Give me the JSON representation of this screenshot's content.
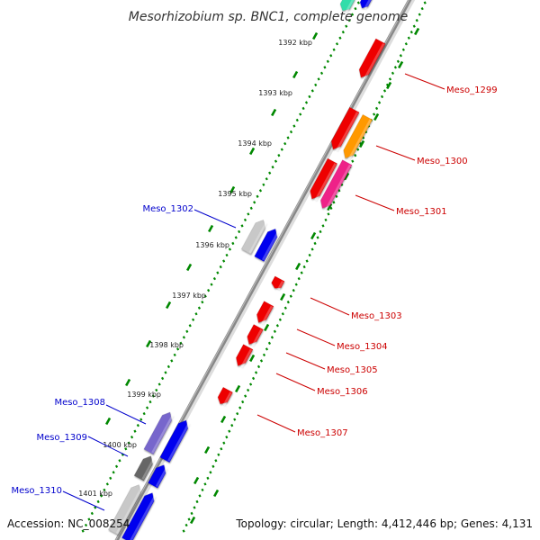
{
  "map": {
    "title": "Mesorhizobium sp. BNC1, complete genome",
    "accession": "Accession: NC_008254",
    "topology": "Topology: circular; Length: 4,412,446 bp; Genes: 4,131"
  },
  "ruler": {
    "ticks": [
      "1392 kbp",
      "1393 kbp",
      "1394 kbp",
      "1395 kbp",
      "1396 kbp",
      "1397 kbp",
      "1398 kbp",
      "1399 kbp",
      "1400 kbp",
      "1401 kbp"
    ]
  },
  "genes": {
    "reverse": [
      {
        "label": "Meso_1302",
        "color": "#0000cc"
      },
      {
        "label": "Meso_1308",
        "color": "#0000cc"
      },
      {
        "label": "Meso_1309",
        "color": "#0000cc"
      },
      {
        "label": "Meso_1310",
        "color": "#0000cc"
      }
    ],
    "forward": [
      {
        "label": "Meso_1299",
        "color": "#cc0000"
      },
      {
        "label": "Meso_1300",
        "color": "#cc0000"
      },
      {
        "label": "Meso_1301",
        "color": "#cc0000"
      },
      {
        "label": "Meso_1303",
        "color": "#cc0000"
      },
      {
        "label": "Meso_1304",
        "color": "#cc0000"
      },
      {
        "label": "Meso_1305",
        "color": "#cc0000"
      },
      {
        "label": "Meso_1306",
        "color": "#cc0000"
      },
      {
        "label": "Meso_1307",
        "color": "#cc0000"
      }
    ]
  },
  "colors": {
    "backbone": "#888888",
    "tick_marks": "#008800",
    "forward_gene": "#ee0000",
    "reverse_gene": "#0000ee",
    "orange_gene": "#ff9900",
    "pink_gene": "#ee2288",
    "teal_gene": "#33ddaa",
    "gray_gene": "#c8c8c8",
    "dark_gray_gene": "#666666",
    "violet_gene": "#7766cc"
  }
}
